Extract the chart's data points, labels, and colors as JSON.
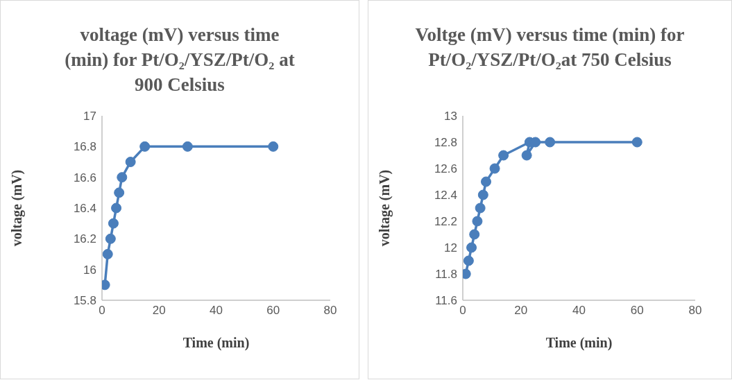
{
  "chart_data": [
    {
      "type": "line",
      "title": "voltage (mV) versus time (min) for Pt/O₂/YSZ/Pt/O₂ at 900 Celsius",
      "xlabel": "Time (min)",
      "ylabel": "voltage (mV)",
      "x": [
        1,
        2,
        3,
        4,
        5,
        6,
        7,
        10,
        15,
        30,
        60
      ],
      "series": [
        {
          "color": "#4a7ebb",
          "values": [
            15.9,
            16.1,
            16.2,
            16.3,
            16.4,
            16.5,
            16.6,
            16.7,
            16.8,
            16.8,
            16.8
          ]
        }
      ],
      "xlim": [
        0,
        80
      ],
      "xticks": [
        0,
        20,
        40,
        60,
        80
      ],
      "ylim": [
        15.8,
        17
      ],
      "yticks": [
        15.8,
        16,
        16.2,
        16.4,
        16.6,
        16.8,
        17
      ],
      "marker": "circle",
      "line_style": "solid"
    },
    {
      "type": "line",
      "title": "Voltge (mV) versus time (min) for  Pt/O₂/YSZ/Pt/O₂at 750 Celsius",
      "xlabel": "Time (min)",
      "ylabel": "voltage (mV)",
      "x": [
        1,
        2,
        3,
        4,
        5,
        6,
        7,
        8,
        11,
        14,
        23,
        22,
        25,
        30,
        60
      ],
      "series": [
        {
          "color": "#4a7ebb",
          "values": [
            11.8,
            11.9,
            12,
            12.1,
            12.2,
            12.3,
            12.4,
            12.5,
            12.6,
            12.7,
            12.8,
            12.7,
            12.8,
            12.8,
            12.8
          ]
        }
      ],
      "xlim": [
        0,
        80
      ],
      "xticks": [
        0,
        20,
        40,
        60,
        80
      ],
      "ylim": [
        11.6,
        13
      ],
      "yticks": [
        11.6,
        11.8,
        12,
        12.2,
        12.4,
        12.6,
        12.8,
        13
      ],
      "marker": "circle",
      "line_style": "solid"
    }
  ]
}
